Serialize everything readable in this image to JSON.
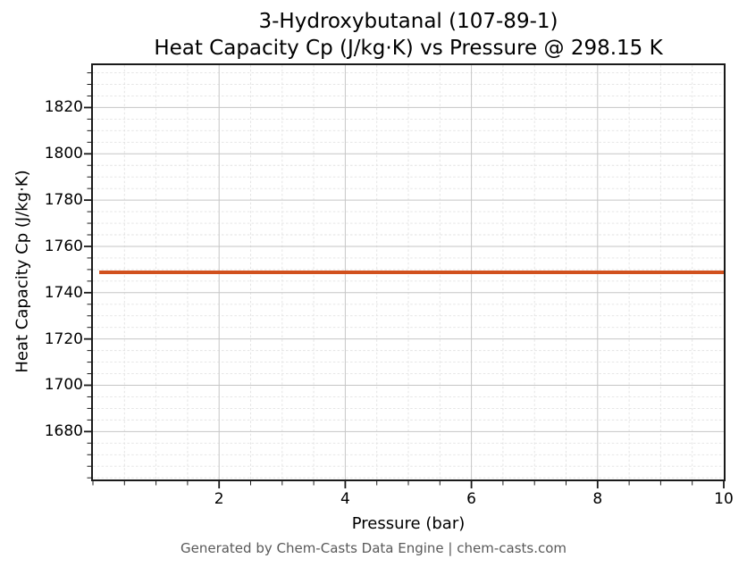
{
  "figure": {
    "background": "#ffffff",
    "spine_color": "#1a1a1a",
    "major_grid_color": "#c6c6c6",
    "minor_grid_color": "#e2e2e2",
    "tick_color": "#1a1a1a"
  },
  "footer": {
    "text": "Generated by Chem-Casts Data Engine | chem-casts.com",
    "color": "#595959"
  },
  "chart_data": {
    "type": "line",
    "title": "3-Hydroxybutanal (107-89-1)",
    "subtitle": "Heat Capacity Cp (J/kg·K) vs Pressure @ 298.15 K",
    "xlabel": "Pressure (bar)",
    "ylabel": "Heat Capacity Cp (J/kg·K)",
    "xlim": [
      0,
      10
    ],
    "ylim": [
      1659.3,
      1838.3
    ],
    "x_major_ticks": [
      2,
      4,
      6,
      8,
      10
    ],
    "x_minor_step": 0.5,
    "y_major_ticks": [
      1680,
      1700,
      1720,
      1740,
      1760,
      1780,
      1800,
      1820
    ],
    "y_minor_step": 5,
    "grid": true,
    "legend": "none",
    "series": [
      {
        "name": "Heat Capacity Cp",
        "color": "#d1511e",
        "line_width": 4,
        "x": [
          0.1,
          10
        ],
        "y": [
          1748.8,
          1748.8
        ]
      }
    ]
  }
}
